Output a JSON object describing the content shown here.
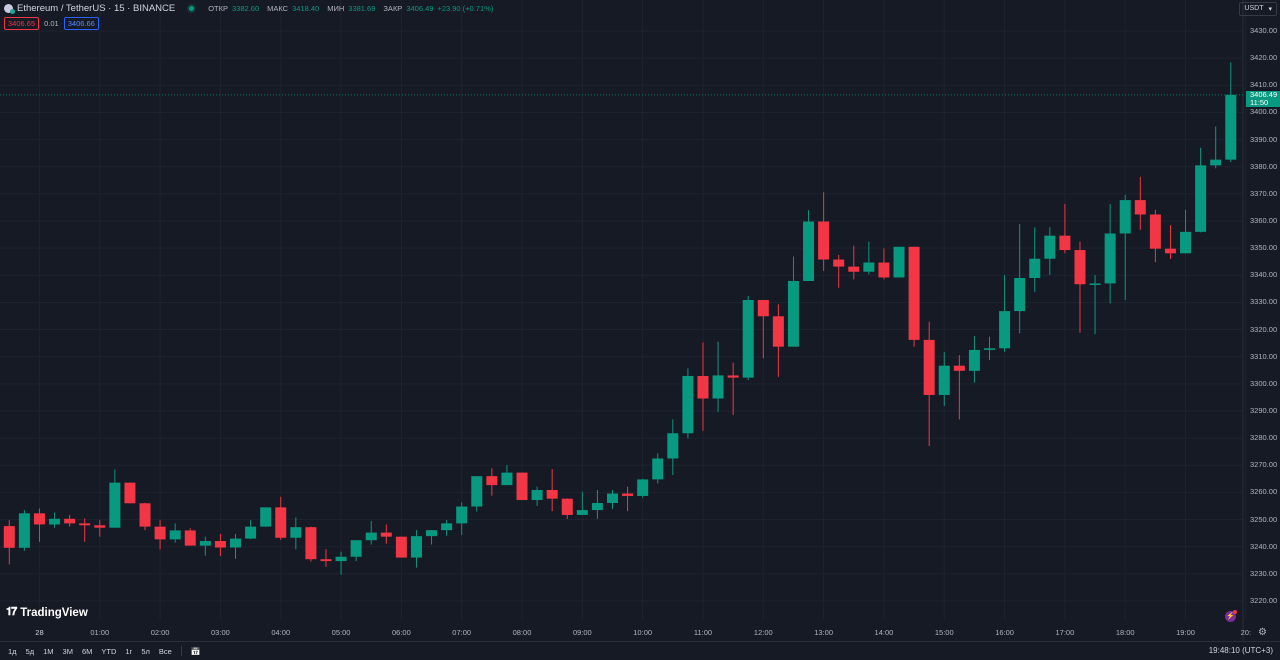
{
  "header": {
    "title": "Ethereum / TetherUS · 15 · BINANCE",
    "open_label": "ОТКР",
    "open": "3382.60",
    "high_label": "МАКС",
    "high": "3418.40",
    "low_label": "МИН",
    "low": "3381.69",
    "close_label": "ЗАКР",
    "close": "3406.49",
    "change": "+23.90 (+0.71%)",
    "sell_price": "3406.65",
    "spread": "0.01",
    "buy_price": "3406.66"
  },
  "currency": {
    "label": "USDT"
  },
  "last_price": {
    "price": "3406.49",
    "countdown": "11:50"
  },
  "logo": {
    "text": "TradingView"
  },
  "bottom": {
    "ranges": [
      "1д",
      "5д",
      "1М",
      "3М",
      "6М",
      "YTD",
      "1г",
      "5л",
      "Все"
    ],
    "clock": "19:48:10 (UTC+3)"
  },
  "colors": {
    "background": "#161a25",
    "up": "#089981",
    "down": "#f23645",
    "grid": "#1f2330"
  },
  "icons": [
    "ethereum-icon",
    "market-open-dot",
    "calendar-range-icon",
    "gear-icon",
    "alert-icon",
    "chevron-down-icon"
  ],
  "chart_data": {
    "type": "candlestick",
    "interval": "15",
    "ylim": [
      3220,
      3430
    ],
    "y_ticks": [
      "3430.00",
      "3420.00",
      "3410.00",
      "3400.00",
      "3390.00",
      "3380.00",
      "3370.00",
      "3360.00",
      "3350.00",
      "3340.00",
      "3330.00",
      "3320.00",
      "3310.00",
      "3300.00",
      "3290.00",
      "3280.00",
      "3270.00",
      "3260.00",
      "3250.00",
      "3240.00",
      "3230.00",
      "3220.00"
    ],
    "x_ticks": [
      {
        "at": "00:00",
        "label": "28"
      },
      {
        "at": "01:00",
        "label": "01:00"
      },
      {
        "at": "02:00",
        "label": "02:00"
      },
      {
        "at": "03:00",
        "label": "03:00"
      },
      {
        "at": "04:00",
        "label": "04:00"
      },
      {
        "at": "05:00",
        "label": "05:00"
      },
      {
        "at": "06:00",
        "label": "06:00"
      },
      {
        "at": "07:00",
        "label": "07:00"
      },
      {
        "at": "08:00",
        "label": "08:00"
      },
      {
        "at": "09:00",
        "label": "09:00"
      },
      {
        "at": "10:00",
        "label": "10:00"
      },
      {
        "at": "11:00",
        "label": "11:00"
      },
      {
        "at": "12:00",
        "label": "12:00"
      },
      {
        "at": "13:00",
        "label": "13:00"
      },
      {
        "at": "14:00",
        "label": "14:00"
      },
      {
        "at": "15:00",
        "label": "15:00"
      },
      {
        "at": "16:00",
        "label": "16:00"
      },
      {
        "at": "17:00",
        "label": "17:00"
      },
      {
        "at": "18:00",
        "label": "18:00"
      },
      {
        "at": "19:00",
        "label": "19:00"
      },
      {
        "at": "20:00",
        "label": "20:"
      }
    ],
    "columns": [
      "time",
      "open",
      "high",
      "low",
      "close"
    ],
    "candles": [
      [
        "23:30",
        3247.6,
        3249.8,
        3233.5,
        3239.6
      ],
      [
        "23:45",
        3239.6,
        3253.5,
        3238.5,
        3252.3
      ],
      [
        "00:00",
        3252.3,
        3254.1,
        3241.8,
        3248.2
      ],
      [
        "00:15",
        3248.2,
        3252.6,
        3247.0,
        3250.3
      ],
      [
        "00:30",
        3250.3,
        3251.7,
        3247.4,
        3248.6
      ],
      [
        "00:45",
        3248.6,
        3250.4,
        3241.8,
        3247.9
      ],
      [
        "01:00",
        3247.9,
        3249.8,
        3243.7,
        3247.0
      ],
      [
        "01:15",
        3247.0,
        3268.5,
        3247.0,
        3263.6
      ],
      [
        "01:30",
        3263.6,
        3263.6,
        3256.0,
        3256.0
      ],
      [
        "01:45",
        3256.0,
        3256.2,
        3246.1,
        3247.4
      ],
      [
        "02:00",
        3247.4,
        3249.8,
        3239.0,
        3242.7
      ],
      [
        "02:15",
        3242.7,
        3248.6,
        3241.5,
        3246.0
      ],
      [
        "02:30",
        3246.0,
        3246.8,
        3240.4,
        3240.4
      ],
      [
        "02:45",
        3240.4,
        3243.7,
        3236.7,
        3242.1
      ],
      [
        "03:00",
        3242.1,
        3244.7,
        3236.6,
        3239.7
      ],
      [
        "03:15",
        3239.7,
        3244.7,
        3235.5,
        3243.0
      ],
      [
        "03:30",
        3243.0,
        3249.8,
        3242.8,
        3247.4
      ],
      [
        "03:45",
        3247.4,
        3254.5,
        3247.4,
        3254.5
      ],
      [
        "04:00",
        3254.5,
        3258.4,
        3242.5,
        3243.3
      ],
      [
        "04:15",
        3243.3,
        3250.8,
        3239.0,
        3247.2
      ],
      [
        "04:30",
        3247.2,
        3247.4,
        3234.5,
        3235.4
      ],
      [
        "04:45",
        3235.4,
        3239.1,
        3232.6,
        3234.7
      ],
      [
        "05:00",
        3234.7,
        3238.2,
        3229.6,
        3236.3
      ],
      [
        "05:15",
        3236.3,
        3242.4,
        3234.7,
        3242.4
      ],
      [
        "05:30",
        3242.4,
        3249.5,
        3240.8,
        3245.2
      ],
      [
        "05:45",
        3245.2,
        3248.2,
        3241.1,
        3243.7
      ],
      [
        "06:00",
        3243.7,
        3243.7,
        3236.0,
        3236.0
      ],
      [
        "06:15",
        3236.0,
        3246.1,
        3232.3,
        3243.9
      ],
      [
        "06:30",
        3243.9,
        3246.1,
        3240.8,
        3246.1
      ],
      [
        "06:45",
        3246.1,
        3249.8,
        3244.0,
        3248.6
      ],
      [
        "07:00",
        3248.6,
        3256.3,
        3244.3,
        3254.8
      ],
      [
        "07:15",
        3254.8,
        3266.0,
        3252.9,
        3266.0
      ],
      [
        "07:30",
        3266.0,
        3268.9,
        3258.8,
        3262.7
      ],
      [
        "07:45",
        3262.7,
        3270.1,
        3262.7,
        3267.3
      ],
      [
        "08:00",
        3267.3,
        3267.3,
        3257.2,
        3257.2
      ],
      [
        "08:15",
        3257.2,
        3262.1,
        3255.0,
        3260.9
      ],
      [
        "08:30",
        3260.9,
        3268.6,
        3253.1,
        3257.7
      ],
      [
        "08:45",
        3257.7,
        3257.8,
        3250.2,
        3251.7
      ],
      [
        "09:00",
        3251.7,
        3260.3,
        3251.7,
        3253.5
      ],
      [
        "09:15",
        3253.5,
        3260.9,
        3250.2,
        3256.1
      ],
      [
        "09:30",
        3256.1,
        3260.9,
        3253.9,
        3259.6
      ],
      [
        "09:45",
        3259.6,
        3262.1,
        3253.1,
        3258.7
      ],
      [
        "10:00",
        3258.7,
        3265.0,
        3258.0,
        3264.8
      ],
      [
        "10:15",
        3264.8,
        3274.4,
        3263.3,
        3272.5
      ],
      [
        "10:30",
        3272.5,
        3286.9,
        3266.4,
        3281.8
      ],
      [
        "10:45",
        3281.8,
        3305.7,
        3279.9,
        3302.9
      ],
      [
        "11:00",
        3302.9,
        3315.2,
        3282.7,
        3294.6
      ],
      [
        "11:15",
        3294.6,
        3315.5,
        3289.7,
        3303.1
      ],
      [
        "11:30",
        3303.1,
        3307.8,
        3288.5,
        3302.3
      ],
      [
        "11:45",
        3302.3,
        3332.4,
        3301.4,
        3330.9
      ],
      [
        "12:00",
        3330.9,
        3330.9,
        3309.4,
        3324.9
      ],
      [
        "12:15",
        3324.9,
        3329.3,
        3302.6,
        3313.7
      ],
      [
        "12:30",
        3313.7,
        3346.9,
        3313.7,
        3337.9
      ],
      [
        "12:45",
        3337.9,
        3364.0,
        3337.9,
        3359.8
      ],
      [
        "13:00",
        3359.8,
        3370.6,
        3341.6,
        3345.8
      ],
      [
        "13:15",
        3345.8,
        3347.5,
        3335.4,
        3343.2
      ],
      [
        "13:30",
        3343.2,
        3350.9,
        3338.5,
        3341.3
      ],
      [
        "13:45",
        3341.3,
        3352.4,
        3340.3,
        3344.7
      ],
      [
        "14:00",
        3344.7,
        3349.9,
        3338.5,
        3339.2
      ],
      [
        "14:15",
        3339.2,
        3350.5,
        3339.2,
        3350.5
      ],
      [
        "14:30",
        3350.5,
        3350.5,
        3313.7,
        3316.2
      ],
      [
        "14:45",
        3316.2,
        3322.9,
        3277.1,
        3295.9
      ],
      [
        "15:00",
        3295.9,
        3311.8,
        3291.8,
        3306.7
      ],
      [
        "15:15",
        3306.7,
        3310.6,
        3286.9,
        3304.8
      ],
      [
        "15:30",
        3304.8,
        3317.6,
        3300.4,
        3312.5
      ],
      [
        "15:45",
        3312.5,
        3317.4,
        3308.8,
        3313.1
      ],
      [
        "16:00",
        3313.1,
        3340.1,
        3311.8,
        3326.8
      ],
      [
        "16:15",
        3326.8,
        3358.9,
        3318.6,
        3339.0
      ],
      [
        "16:30",
        3339.0,
        3357.7,
        3333.9,
        3346.1
      ],
      [
        "16:45",
        3346.1,
        3357.7,
        3340.1,
        3354.6
      ],
      [
        "17:00",
        3354.6,
        3366.3,
        3348.1,
        3349.3
      ],
      [
        "17:15",
        3349.3,
        3352.4,
        3318.8,
        3336.7
      ],
      [
        "17:30",
        3336.7,
        3340.1,
        3318.3,
        3337.0
      ],
      [
        "17:45",
        3337.0,
        3366.3,
        3329.6,
        3355.4
      ],
      [
        "18:00",
        3355.4,
        3369.6,
        3330.9,
        3367.7
      ],
      [
        "18:15",
        3367.7,
        3376.3,
        3356.7,
        3362.4
      ],
      [
        "18:30",
        3362.4,
        3364.1,
        3344.8,
        3349.8
      ],
      [
        "18:45",
        3349.8,
        3358.5,
        3346.0,
        3348.1
      ],
      [
        "19:00",
        3348.1,
        3364.1,
        3348.1,
        3356.0
      ],
      [
        "19:15",
        3356.0,
        3387.0,
        3355.8,
        3380.5
      ],
      [
        "19:30",
        3380.5,
        3394.8,
        3379.4,
        3382.6
      ],
      [
        "19:45",
        3382.6,
        3418.4,
        3381.69,
        3406.49
      ]
    ],
    "last_price_line": 3406.49,
    "grid": true
  }
}
